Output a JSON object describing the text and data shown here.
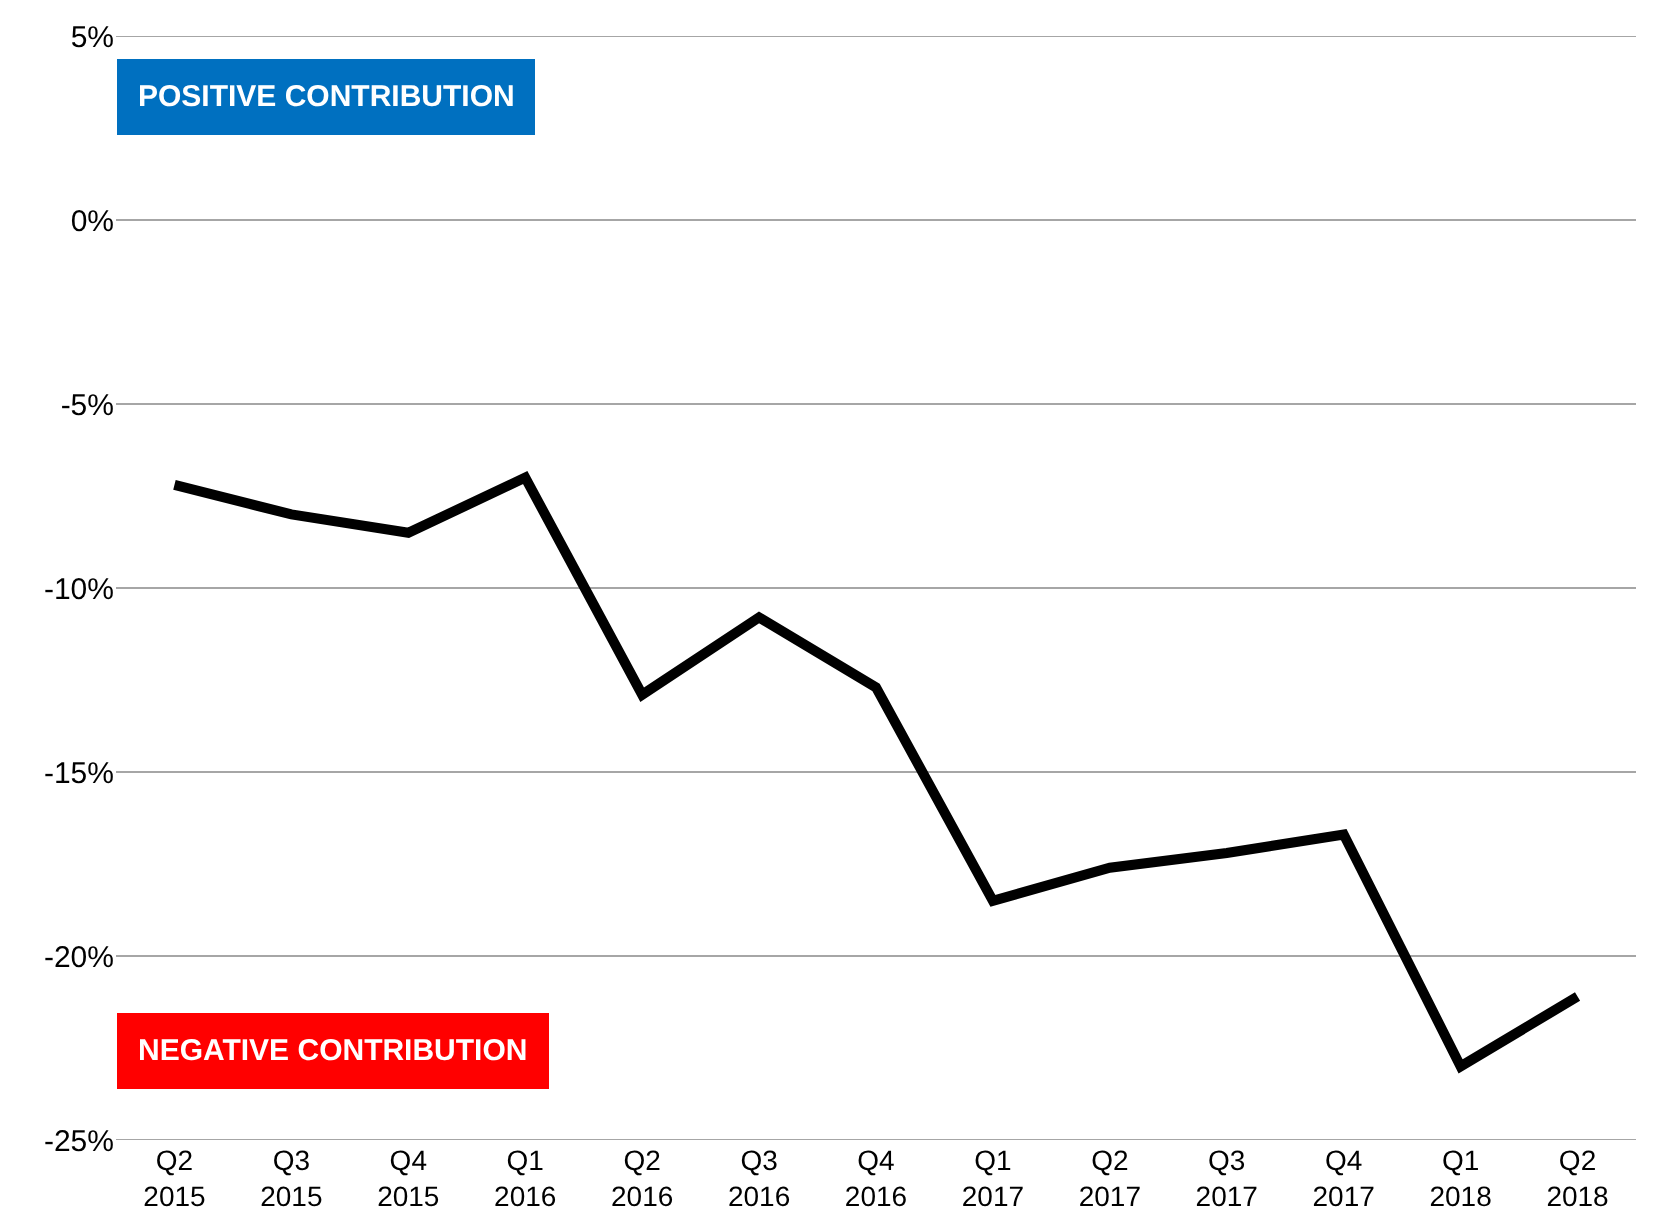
{
  "chart_data": {
    "type": "line",
    "categories": [
      "Q2 2015",
      "Q3 2015",
      "Q4 2015",
      "Q1 2016",
      "Q2 2016",
      "Q3 2016",
      "Q4 2016",
      "Q1 2017",
      "Q2 2017",
      "Q3 2017",
      "Q4 2017",
      "Q1 2018",
      "Q2 2018"
    ],
    "series": [
      {
        "color": "#000000",
        "values": [
          -7.2,
          -8.0,
          -8.5,
          -7.0,
          -12.9,
          -10.8,
          -12.7,
          -18.5,
          -17.6,
          -17.2,
          -16.7,
          -23.0,
          -21.1
        ]
      }
    ],
    "ylim": [
      -25,
      5
    ],
    "yticks": [
      {
        "value": 5,
        "label": "5%"
      },
      {
        "value": 0,
        "label": "0%"
      },
      {
        "value": -5,
        "label": "-5%"
      },
      {
        "value": -10,
        "label": "-10%"
      },
      {
        "value": -15,
        "label": "-15%"
      },
      {
        "value": -20,
        "label": "-20%"
      },
      {
        "value": -25,
        "label": "-25%"
      }
    ],
    "annotations": [
      "POSITIVE CONTRIBUTION",
      "NEGATIVE CONTRIBUTION"
    ],
    "grid": "y",
    "marker": "none",
    "line_style": "solid"
  }
}
